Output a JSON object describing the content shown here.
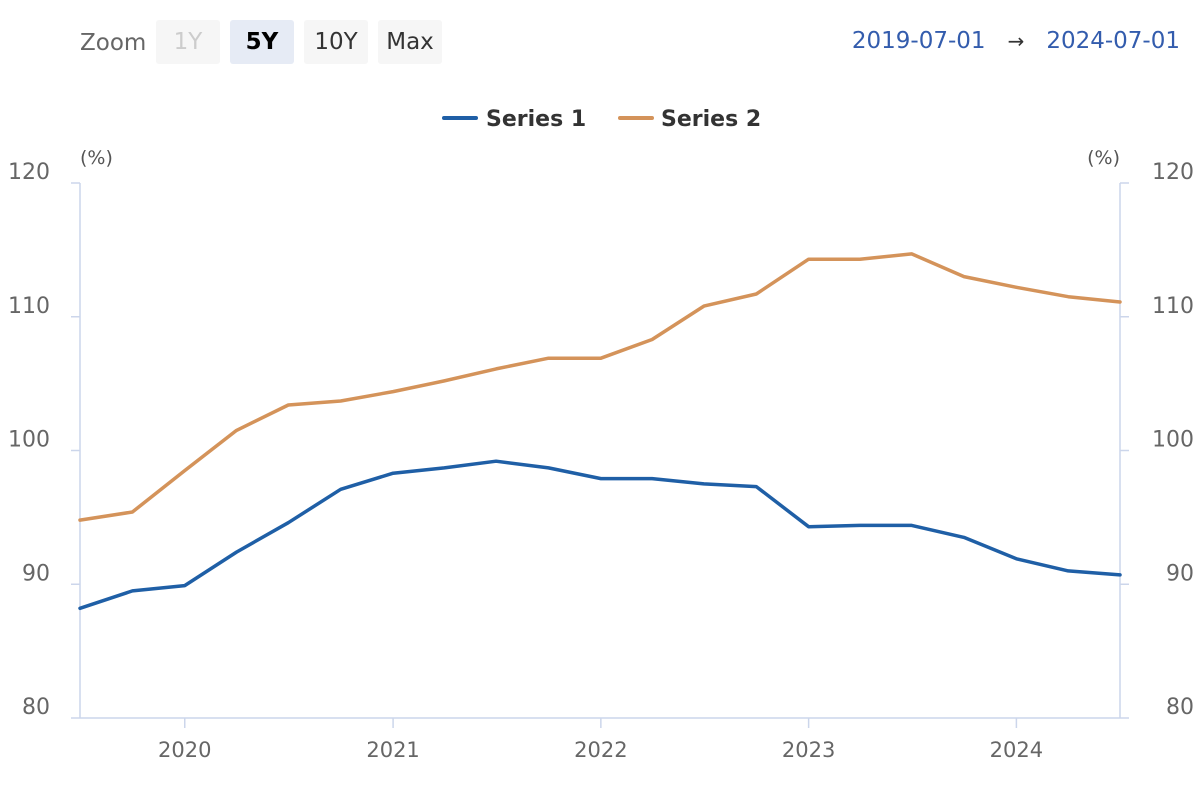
{
  "toolbar": {
    "zoom_label": "Zoom",
    "buttons": [
      {
        "label": "1Y",
        "state": "disabled"
      },
      {
        "label": "5Y",
        "state": "active"
      },
      {
        "label": "10Y",
        "state": "normal"
      },
      {
        "label": "Max",
        "state": "normal"
      }
    ],
    "range_from": "2019-07-01",
    "range_arrow": "→",
    "range_to": "2024-07-01"
  },
  "chart_data": {
    "type": "line",
    "title": "",
    "xlabel": "",
    "ylabel_left": "(%)",
    "ylabel_right": "(%)",
    "ylim": [
      80,
      120
    ],
    "yticks": [
      80,
      90,
      100,
      110,
      120
    ],
    "xlim": [
      "2019-07-01",
      "2024-07-01"
    ],
    "xticks": [
      "2020",
      "2021",
      "2022",
      "2023",
      "2024"
    ],
    "legend_position": "top-center",
    "x": [
      "2019-07-01",
      "2019-10-01",
      "2020-01-01",
      "2020-04-01",
      "2020-07-01",
      "2020-10-01",
      "2021-01-01",
      "2021-04-01",
      "2021-07-01",
      "2021-10-01",
      "2022-01-01",
      "2022-04-01",
      "2022-07-01",
      "2022-10-01",
      "2023-01-01",
      "2023-04-01",
      "2023-07-01",
      "2023-10-01",
      "2024-01-01",
      "2024-04-01",
      "2024-07-01"
    ],
    "series": [
      {
        "name": "Series 1",
        "color": "#1f5fa6",
        "values": [
          88.2,
          89.5,
          89.9,
          92.4,
          94.6,
          97.1,
          98.3,
          98.7,
          99.2,
          98.7,
          97.9,
          97.9,
          97.5,
          97.3,
          94.3,
          94.4,
          94.4,
          93.5,
          91.9,
          91.0,
          90.7
        ]
      },
      {
        "name": "Series 2",
        "color": "#d4935a",
        "values": [
          94.8,
          95.4,
          98.5,
          101.5,
          103.4,
          103.7,
          104.4,
          105.2,
          106.1,
          106.9,
          106.9,
          108.3,
          110.8,
          111.7,
          114.3,
          114.3,
          114.7,
          113.0,
          112.2,
          111.5,
          111.1
        ]
      }
    ]
  }
}
